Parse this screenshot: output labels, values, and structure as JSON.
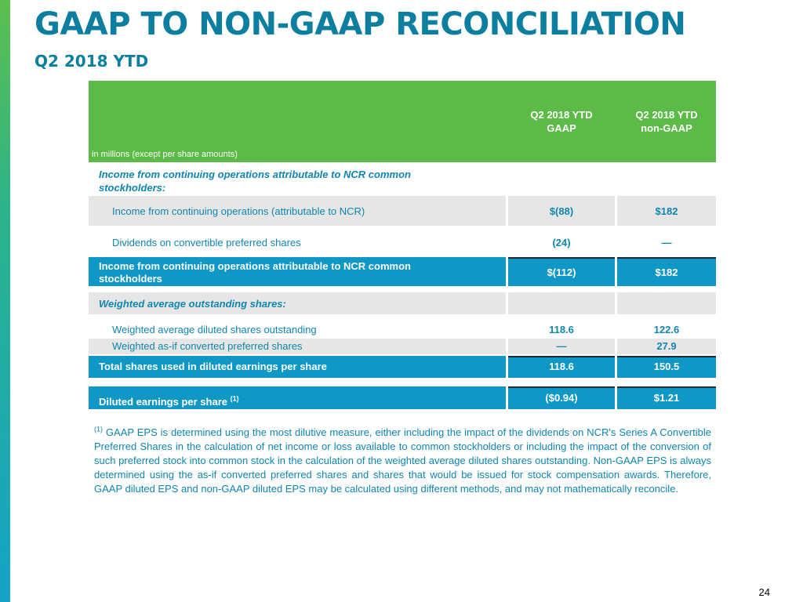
{
  "title": "GAAP TO NON-GAAP RECONCILIATION",
  "subtitle": "Q2 2018 YTD",
  "table": {
    "columns": [
      "Q2 2018 YTD\nGAAP",
      "Q2 2018 YTD\nnon-GAAP"
    ],
    "col1_line1": "Q2 2018 YTD",
    "col1_line2": "GAAP",
    "col2_line1": "Q2 2018 YTD",
    "col2_line2": "non-GAAP",
    "unit_note": "in millions (except per share amounts)",
    "section1_heading": "Income from continuing operations attributable to NCR common stockholders:",
    "row_income": {
      "label": "Income from continuing operations (attributable to NCR)",
      "gaap": "$(88)",
      "non_gaap": "$182"
    },
    "row_dividends": {
      "label": "Dividends on convertible preferred shares",
      "gaap": "(24)",
      "non_gaap": "—"
    },
    "row_income_total": {
      "label": "Income from continuing operations attributable to NCR common stockholders",
      "gaap": "$(112)",
      "non_gaap": "$182"
    },
    "section2_heading": "Weighted average outstanding shares:",
    "row_diluted_shares": {
      "label": "Weighted average diluted shares outstanding",
      "gaap": "118.6",
      "non_gaap": "122.6"
    },
    "row_asif_shares": {
      "label": "Weighted as-if converted preferred shares",
      "gaap": "—",
      "non_gaap": "27.9"
    },
    "row_total_shares": {
      "label": "Total shares used in diluted earnings per share",
      "gaap": "118.6",
      "non_gaap": "150.5"
    },
    "row_eps": {
      "label": "Diluted earnings per share",
      "footnote_ref": "(1)",
      "gaap": "($0.94)",
      "non_gaap": "$1.21"
    }
  },
  "footnote": {
    "marker": "(1)",
    "text": "GAAP EPS is determined using the most dilutive measure, either including the impact of the dividends on NCR's Series A Convertible Preferred Shares in the calculation of net income or loss available to common stockholders or including the impact of the conversion of such preferred stock into common stock in the calculation of the weighted average diluted shares outstanding. Non-GAAP EPS is always determined using the as-if converted preferred shares and shares that would be issued for stock compensation awards. Therefore, GAAP diluted EPS and non-GAAP diluted EPS may be calculated using different methods, and may not mathematically reconcile."
  },
  "page_number": "24",
  "colors": {
    "title": "#0c7fa0",
    "header_green": "#5cbb47",
    "total_blue": "#0f98c5",
    "row_grey": "#e6e6e6",
    "text_blue": "#0f86b0"
  }
}
